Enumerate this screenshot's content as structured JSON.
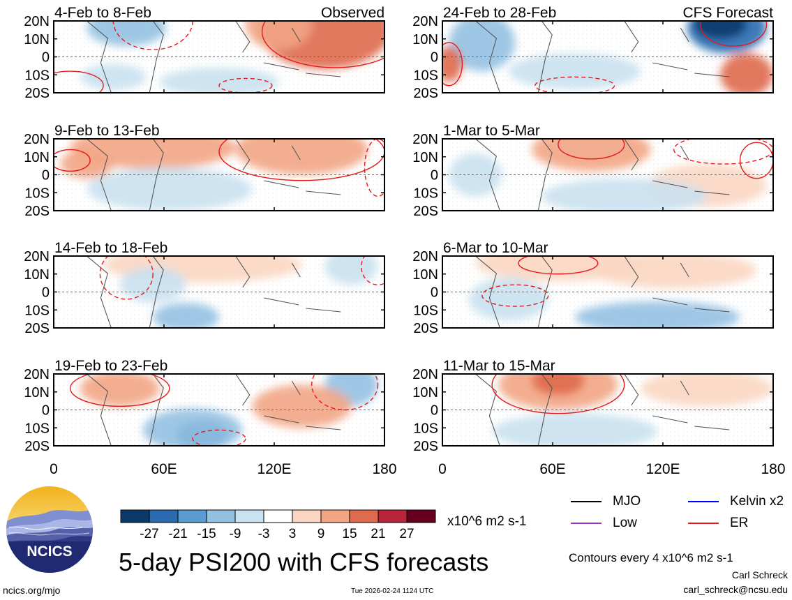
{
  "chart_data": {
    "type": "heatmap",
    "title": "5-day PSI200 with CFS forecasts",
    "variable": "PSI200",
    "units": "x10^6 m2 s-1",
    "column_headers": [
      "Observed",
      "CFS Forecast"
    ],
    "lat_ticks": [
      "20N",
      "10N",
      "0",
      "10S",
      "20S"
    ],
    "lon_ticks": [
      "0",
      "60E",
      "120E",
      "180"
    ],
    "lat_range": [
      -20,
      20
    ],
    "lon_range": [
      0,
      180
    ],
    "colorbar": {
      "ticks": [
        "-27",
        "-21",
        "-15",
        "-9",
        "-3",
        "3",
        "9",
        "15",
        "21",
        "27"
      ],
      "colors": [
        "#0b3a6a",
        "#2a6bb0",
        "#5b9bd0",
        "#93c1e2",
        "#c9e1f0",
        "#ffffff",
        "#fbd6c2",
        "#f2a585",
        "#df6a4d",
        "#b8253a",
        "#67001f"
      ]
    },
    "contour_note": "Contours every 4 x10^6 m2 s-1",
    "legend": [
      {
        "name": "MJO",
        "color": "#000000"
      },
      {
        "name": "Kelvin x2",
        "color": "#0000ff"
      },
      {
        "name": "Low",
        "color": "#9933cc"
      },
      {
        "name": "ER",
        "color": "#e31a1c"
      }
    ],
    "panels": [
      {
        "label": "4-Feb to 8-Feb",
        "header": "Observed"
      },
      {
        "label": "24-Feb to 28-Feb",
        "header": "CFS Forecast"
      },
      {
        "label": "9-Feb to 13-Feb",
        "header": ""
      },
      {
        "label": "1-Mar to 5-Mar",
        "header": ""
      },
      {
        "label": "14-Feb to 18-Feb",
        "header": ""
      },
      {
        "label": "6-Mar to 10-Mar",
        "header": ""
      },
      {
        "label": "19-Feb to 23-Feb",
        "header": ""
      },
      {
        "label": "11-Mar to 15-Mar",
        "header": ""
      }
    ]
  },
  "footer": {
    "logo_text": "NCICS",
    "site": "ncics.org/mjo",
    "timestamp": "Tue 2026-02-24 1124 UTC",
    "author": "Carl Schreck",
    "email": "carl_schreck@ncsu.edu"
  }
}
